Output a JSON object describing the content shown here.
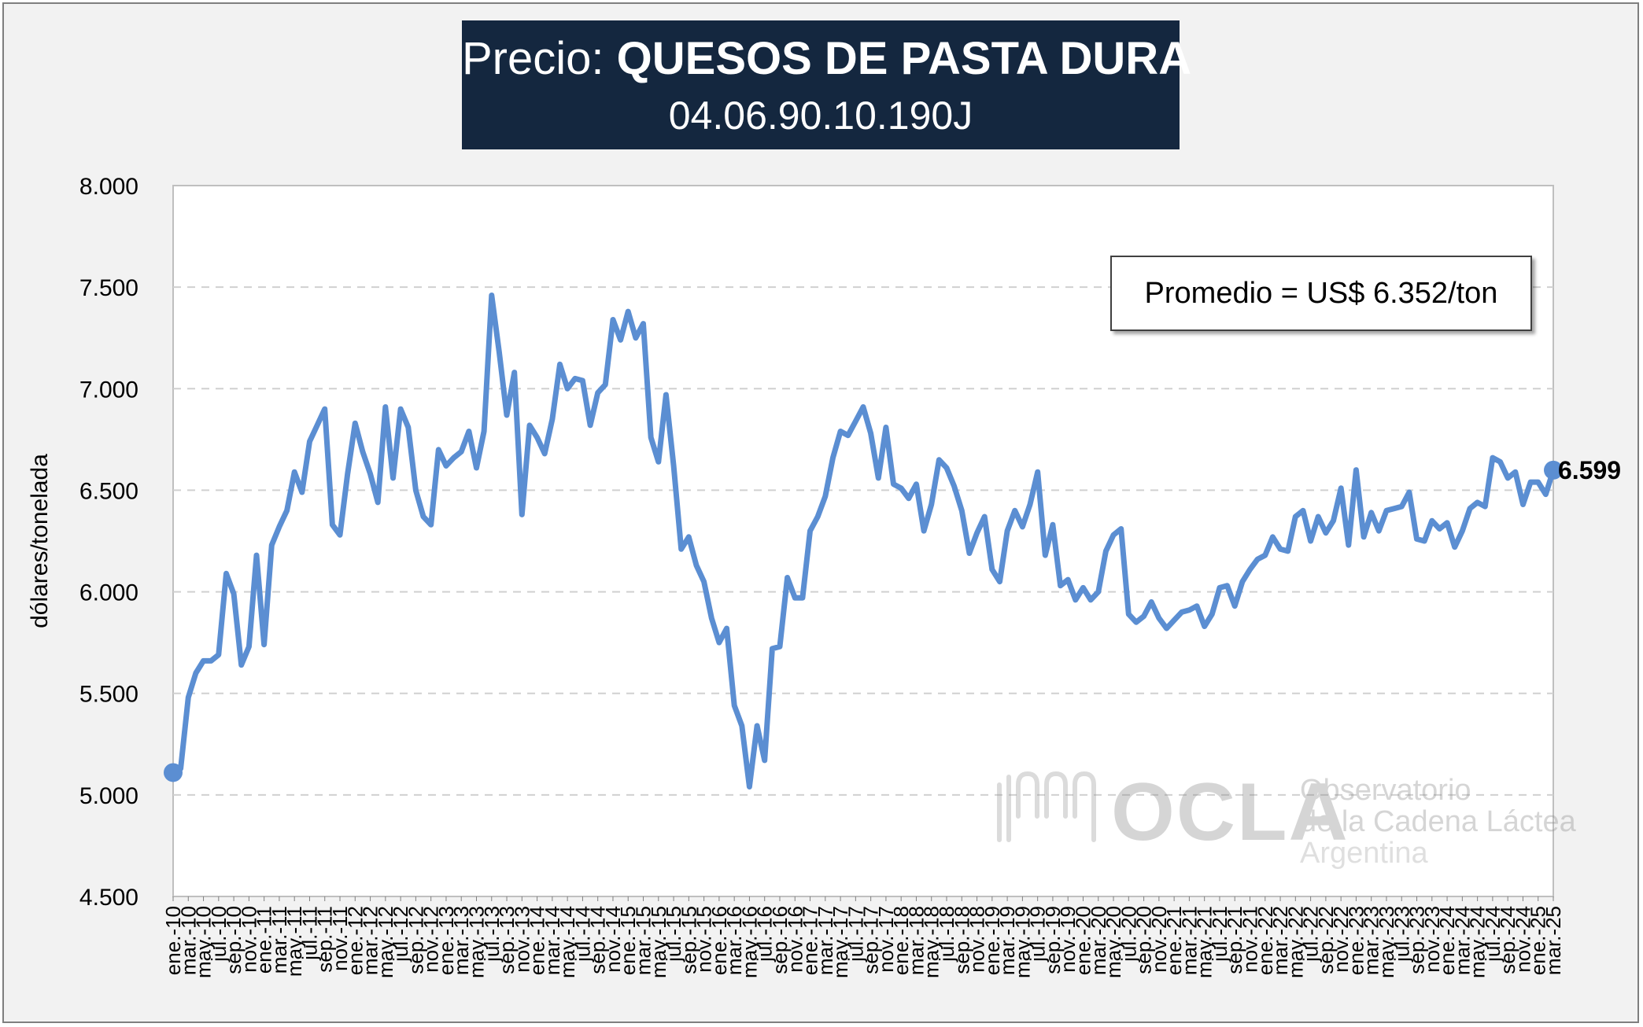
{
  "title": {
    "prefix": "Precio:",
    "main": "QUESOS DE PASTA DURA",
    "code": "04.06.90.10.190J"
  },
  "average_box": "Promedio = US$ 6.352/ton",
  "last_value_label": "6.599",
  "watermark": {
    "name": "OCLA",
    "line1": "Observatorio",
    "line2": "de la Cadena Láctea",
    "line3": "Argentina"
  },
  "colors": {
    "series": "#5b8ed2",
    "title_bg": "#14273f",
    "plot_bg": "#ffffff",
    "frame_bg": "#f2f2f2",
    "grid": "#d0d0d0"
  },
  "chart_data": {
    "type": "line",
    "title": "Precio: QUESOS DE PASTA DURA",
    "subtitle": "04.06.90.10.190J",
    "xlabel": "",
    "ylabel": "dólares/tonelada",
    "ylim": [
      4500,
      8000
    ],
    "yticks": [
      "4.500",
      "5.000",
      "5.500",
      "6.000",
      "6.500",
      "7.000",
      "7.500",
      "8.000"
    ],
    "ytick_values": [
      4500,
      5000,
      5500,
      6000,
      6500,
      7000,
      7500,
      8000
    ],
    "grid": true,
    "x_start": "ene-10",
    "x_end": "mar-25",
    "x_tick_labels": [
      "ene.-10",
      "mar.-10",
      "may.-10",
      "jul.-10",
      "sep.-10",
      "nov.-10",
      "ene.-11",
      "mar.-11",
      "may.-11",
      "jul.-11",
      "sep.-11",
      "nov.-11",
      "ene.-12",
      "mar.-12",
      "may.-12",
      "jul.-12",
      "sep.-12",
      "nov.-12",
      "ene.-13",
      "mar.-13",
      "may.-13",
      "jul.-13",
      "sep.-13",
      "nov.-13",
      "ene.-14",
      "mar.-14",
      "may.-14",
      "jul.-14",
      "sep.-14",
      "nov.-14",
      "ene.-15",
      "mar.-15",
      "may.-15",
      "jul.-15",
      "sep.-15",
      "nov.-15",
      "ene.-16",
      "mar.-16",
      "may.-16",
      "jul.-16",
      "sep.-16",
      "nov.-16",
      "ene.-17",
      "mar.-17",
      "may.-17",
      "jul.-17",
      "sep.-17",
      "nov.-17",
      "ene.-18",
      "mar.-18",
      "may.-18",
      "jul.-18",
      "sep.-18",
      "nov.-18",
      "ene.-19",
      "mar.-19",
      "may.-19",
      "jul.-19",
      "sep.-19",
      "nov.-19",
      "ene.-20",
      "mar.-20",
      "may.-20",
      "jul.-20",
      "sep.-20",
      "nov.-20",
      "ene.-21",
      "mar.-21",
      "may.-21",
      "jul.-21",
      "sep.-21",
      "nov.-21",
      "ene.-22",
      "mar.-22",
      "may.-22",
      "jul.-22",
      "sep.-22",
      "nov.-22",
      "ene.-23",
      "mar.-23",
      "may.-23",
      "jul.-23",
      "sep.-23",
      "nov.-23",
      "ene.-24",
      "mar.-24",
      "may.-24",
      "jul.-24",
      "sep.-24",
      "nov.-24",
      "ene.-25",
      "mar.-25"
    ],
    "series": [
      {
        "values": [
          5110,
          5130,
          5480,
          5600,
          5660,
          5660,
          5690,
          6090,
          5990,
          5640,
          5730,
          6180,
          5740,
          6230,
          6320,
          6400,
          6590,
          6490,
          6740,
          6820,
          6900,
          6330,
          6280,
          6580,
          6830,
          6690,
          6580,
          6440,
          6910,
          6560,
          6900,
          6810,
          6500,
          6370,
          6330,
          6700,
          6620,
          6660,
          6690,
          6790,
          6610,
          6790,
          7460,
          7180,
          6870,
          7080,
          6380,
          6820,
          6760,
          6680,
          6850,
          7120,
          7000,
          7050,
          7040,
          6820,
          6980,
          7020,
          7340,
          7240,
          7380,
          7250,
          7320,
          6760,
          6640,
          6970,
          6620,
          6210,
          6270,
          6130,
          6050,
          5870,
          5750,
          5820,
          5440,
          5340,
          5040,
          5340,
          5170,
          5720,
          5730,
          6070,
          5970,
          5970,
          6300,
          6370,
          6470,
          6660,
          6790,
          6770,
          6840,
          6910,
          6780,
          6560,
          6810,
          6530,
          6510,
          6460,
          6530,
          6300,
          6430,
          6650,
          6610,
          6520,
          6400,
          6190,
          6290,
          6370,
          6110,
          6050,
          6300,
          6400,
          6320,
          6430,
          6590,
          6180,
          6330,
          6030,
          6060,
          5960,
          6020,
          5960,
          6000,
          6200,
          6280,
          6310,
          5890,
          5850,
          5880,
          5950,
          5870,
          5820,
          5860,
          5900,
          5910,
          5930,
          5830,
          5890,
          6020,
          6030,
          5930,
          6050,
          6110,
          6160,
          6180,
          6270,
          6210,
          6200,
          6370,
          6400,
          6250,
          6370,
          6290,
          6350,
          6510,
          6230,
          6600,
          6270,
          6390,
          6300,
          6400,
          6410,
          6420,
          6490,
          6260,
          6250,
          6350,
          6310,
          6340,
          6220,
          6300,
          6410,
          6440,
          6420,
          6660,
          6640,
          6560,
          6590,
          6430,
          6540,
          6540,
          6480,
          6599
        ]
      }
    ],
    "annotations": [
      "Promedio = US$ 6.352/ton",
      "6.599"
    ]
  }
}
